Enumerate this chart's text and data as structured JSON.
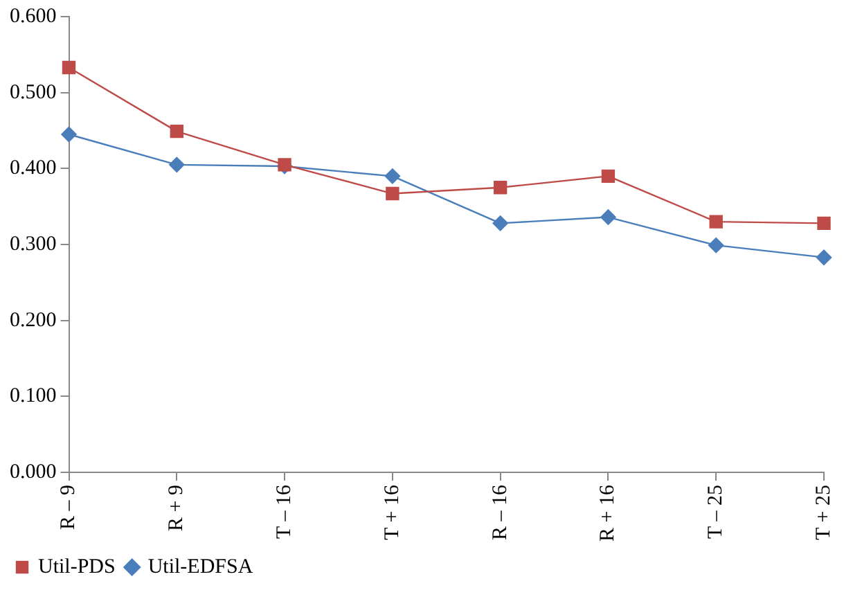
{
  "chart_data": {
    "type": "line",
    "categories": [
      "R – 9",
      "R + 9",
      "T – 16",
      "T + 16",
      "R – 16",
      "R + 16",
      "T – 25",
      "T + 25"
    ],
    "series": [
      {
        "name": "Util-EDFSA",
        "color": "#4a7ebb",
        "marker": "diamond",
        "values": [
          0.445,
          0.405,
          0.403,
          0.39,
          0.328,
          0.336,
          0.299,
          0.283
        ]
      },
      {
        "name": "Util-PDS",
        "color": "#be4b48",
        "marker": "square",
        "values": [
          0.533,
          0.449,
          0.405,
          0.367,
          0.375,
          0.39,
          0.33,
          0.328
        ]
      }
    ],
    "ylim": [
      0,
      0.6
    ],
    "yticks": [
      {
        "value": 0,
        "label": "0.000"
      },
      {
        "value": 0.1,
        "label": "0.100"
      },
      {
        "value": 0.2,
        "label": "0.200"
      },
      {
        "value": 0.3,
        "label": "0.300"
      },
      {
        "value": 0.4,
        "label": "0.400"
      },
      {
        "value": 0.5,
        "label": "0.500"
      },
      {
        "value": 0.6,
        "label": "0.600"
      }
    ],
    "grid": false,
    "legend": "bottom left",
    "line_style": "solid"
  }
}
